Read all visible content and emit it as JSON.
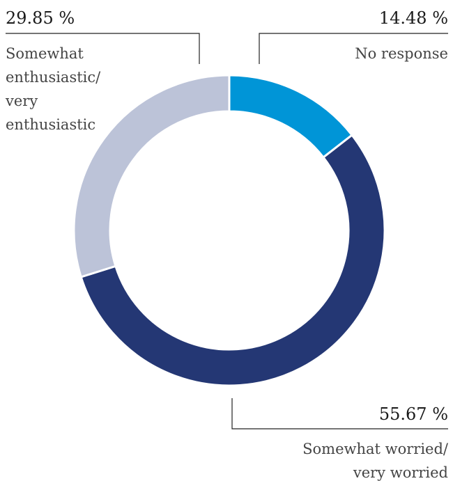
{
  "chart_data": {
    "type": "pie",
    "donut": true,
    "slices": [
      {
        "label_lines": [
          "No response"
        ],
        "value": 14.48,
        "display": "14.48 %",
        "color": "#0095D7"
      },
      {
        "label_lines": [
          "Somewhat worried/",
          "very worried"
        ],
        "value": 55.67,
        "display": "55.67 %",
        "color": "#243774"
      },
      {
        "label_lines": [
          "Somewhat",
          "enthusiastic/",
          "very",
          "enthusiastic"
        ],
        "value": 29.85,
        "display": "29.85 %",
        "color": "#BCC3D8"
      }
    ],
    "start": "12 o'clock",
    "direction": "clockwise"
  }
}
